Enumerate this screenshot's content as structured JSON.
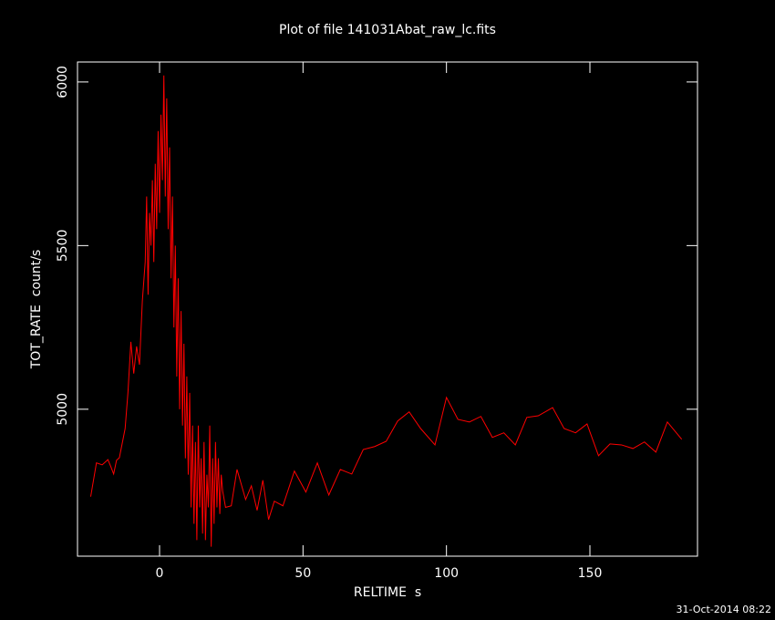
{
  "chart_data": {
    "type": "line",
    "title": "Plot of file 141031Abat_raw_lc.fits",
    "xlabel": "RELTIME  s",
    "ylabel": "TOT_RATE  count/s",
    "footer": "31-Oct-2014 08:22",
    "xlim": [
      -28.6,
      187.5
    ],
    "ylim": [
      4551,
      6061
    ],
    "xticks": [
      0,
      50,
      100,
      150
    ],
    "yticks": [
      5000,
      5500,
      6000
    ],
    "series": [
      {
        "name": "TOT_RATE",
        "color": "#ff0000",
        "x": [
          -24,
          -22,
          -20,
          -18,
          -17,
          -16,
          -15,
          -14,
          -12,
          -11,
          -10,
          -9,
          -8,
          -7,
          -6,
          -5,
          -4.5,
          -4,
          -3.5,
          -3,
          -2.5,
          -2,
          -1.5,
          -1,
          -0.5,
          0,
          0.5,
          1,
          1.5,
          2,
          2.5,
          3,
          3.5,
          4,
          4.5,
          5,
          5.5,
          6,
          6.5,
          7,
          7.5,
          8,
          8.5,
          9,
          9.5,
          10,
          10.5,
          11,
          11.5,
          12,
          12.5,
          13,
          13.5,
          14,
          14.5,
          15,
          15.5,
          16,
          16.5,
          17,
          17.5,
          18,
          18.5,
          19,
          19.5,
          20,
          20.5,
          21,
          21.5,
          22,
          23,
          25,
          27,
          30,
          32,
          34,
          36,
          38,
          40,
          43,
          47,
          51,
          55,
          59,
          63,
          67,
          71,
          75,
          79,
          83,
          87,
          91,
          96,
          100,
          104,
          108,
          112,
          116,
          120,
          124,
          128,
          132,
          137,
          141,
          145,
          149,
          153,
          157,
          161,
          165,
          169,
          173,
          177,
          182
        ],
        "values": [
          4733,
          4836,
          4830,
          4846,
          4825,
          4802,
          4844,
          4852,
          4941,
          5053,
          5206,
          5109,
          5192,
          5136,
          5331,
          5450,
          5650,
          5350,
          5600,
          5500,
          5700,
          5450,
          5750,
          5550,
          5850,
          5600,
          5900,
          5700,
          6020,
          5650,
          5950,
          5550,
          5800,
          5400,
          5650,
          5250,
          5500,
          5100,
          5400,
          5000,
          5300,
          4950,
          5200,
          4850,
          5100,
          4800,
          5050,
          4700,
          4950,
          4650,
          4900,
          4600,
          4950,
          4700,
          4850,
          4620,
          4900,
          4600,
          4800,
          4700,
          4950,
          4580,
          4850,
          4650,
          4900,
          4700,
          4850,
          4680,
          4800,
          4750,
          4700,
          4705,
          4816,
          4724,
          4766,
          4691,
          4783,
          4663,
          4719,
          4705,
          4811,
          4747,
          4836,
          4738,
          4816,
          4802,
          4877,
          4886,
          4902,
          4964,
          4992,
          4941,
          4891,
          5036,
          4969,
          4961,
          4978,
          4914,
          4928,
          4891,
          4975,
          4980,
          5005,
          4941,
          4928,
          4955,
          4858,
          4894,
          4891,
          4880,
          4900,
          4869,
          4961,
          4908
        ]
      }
    ]
  }
}
